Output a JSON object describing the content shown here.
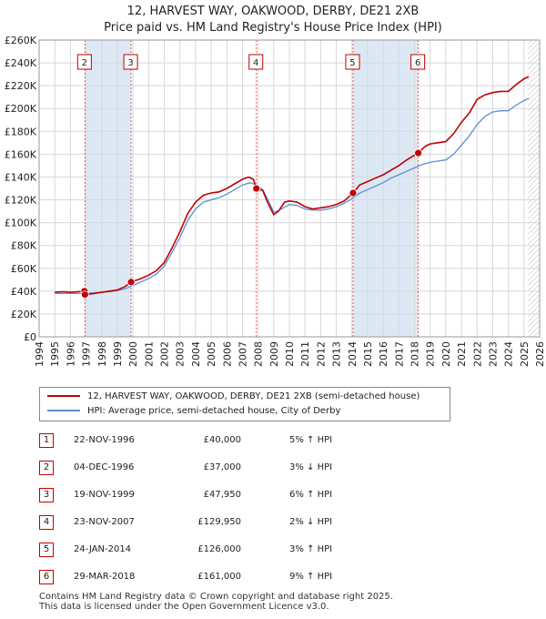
{
  "title_line1": "12, HARVEST WAY, OAKWOOD, DERBY, DE21 2XB",
  "title_line2": "Price paid vs. HM Land Registry's House Price Index (HPI)",
  "legend": {
    "series1": "12, HARVEST WAY, OAKWOOD, DERBY, DE21 2XB (semi-detached house)",
    "series2": "HPI: Average price, semi-detached house, City of Derby"
  },
  "colors": {
    "red": "#c00000",
    "blue": "#5b8fd0",
    "band": "#dde8f5",
    "grid": "#d8d8d8"
  },
  "chart_data": {
    "type": "line",
    "xlim": [
      1994,
      2026
    ],
    "ylim": [
      0,
      260000
    ],
    "y_ticks": [
      {
        "v": 0,
        "label": "£0"
      },
      {
        "v": 20000,
        "label": "£20K"
      },
      {
        "v": 40000,
        "label": "£40K"
      },
      {
        "v": 60000,
        "label": "£60K"
      },
      {
        "v": 80000,
        "label": "£80K"
      },
      {
        "v": 100000,
        "label": "£100K"
      },
      {
        "v": 120000,
        "label": "£120K"
      },
      {
        "v": 140000,
        "label": "£140K"
      },
      {
        "v": 160000,
        "label": "£160K"
      },
      {
        "v": 180000,
        "label": "£180K"
      },
      {
        "v": 200000,
        "label": "£200K"
      },
      {
        "v": 220000,
        "label": "£220K"
      },
      {
        "v": 240000,
        "label": "£240K"
      },
      {
        "v": 260000,
        "label": "£260K"
      }
    ],
    "x_ticks": [
      "1994",
      "1995",
      "1996",
      "1997",
      "1998",
      "1999",
      "2000",
      "2001",
      "2002",
      "2003",
      "2004",
      "2005",
      "2006",
      "2007",
      "2008",
      "2009",
      "2010",
      "2011",
      "2012",
      "2013",
      "2014",
      "2015",
      "2016",
      "2017",
      "2018",
      "2019",
      "2020",
      "2021",
      "2022",
      "2023",
      "2024",
      "2025",
      "2026"
    ],
    "series": [
      {
        "name": "12, HARVEST WAY, OAKWOOD, DERBY, DE21 2XB (semi-detached house)",
        "color": "#c00000",
        "points": [
          [
            1995,
            39000
          ],
          [
            1995.5,
            39500
          ],
          [
            1996,
            39000
          ],
          [
            1996.5,
            39500
          ],
          [
            1996.9,
            40000
          ],
          [
            1996.93,
            37000
          ],
          [
            1997.5,
            38000
          ],
          [
            1998,
            39000
          ],
          [
            1998.5,
            40000
          ],
          [
            1999,
            41000
          ],
          [
            1999.5,
            44000
          ],
          [
            1999.88,
            47950
          ],
          [
            2000.5,
            51000
          ],
          [
            2001,
            54000
          ],
          [
            2001.5,
            58000
          ],
          [
            2002,
            65000
          ],
          [
            2002.5,
            78000
          ],
          [
            2003,
            92000
          ],
          [
            2003.5,
            108000
          ],
          [
            2004,
            118000
          ],
          [
            2004.5,
            124000
          ],
          [
            2005,
            126000
          ],
          [
            2005.5,
            127000
          ],
          [
            2006,
            130000
          ],
          [
            2006.5,
            134000
          ],
          [
            2007,
            138000
          ],
          [
            2007.4,
            140000
          ],
          [
            2007.7,
            138000
          ],
          [
            2007.89,
            129950
          ],
          [
            2008.3,
            128000
          ],
          [
            2008.6,
            118000
          ],
          [
            2009,
            107000
          ],
          [
            2009.3,
            110000
          ],
          [
            2009.7,
            118000
          ],
          [
            2010,
            119000
          ],
          [
            2010.5,
            118000
          ],
          [
            2011,
            114000
          ],
          [
            2011.5,
            112000
          ],
          [
            2012,
            113000
          ],
          [
            2012.5,
            114000
          ],
          [
            2013,
            116000
          ],
          [
            2013.5,
            119000
          ],
          [
            2014.07,
            126000
          ],
          [
            2014.5,
            133000
          ],
          [
            2015,
            136000
          ],
          [
            2015.5,
            139000
          ],
          [
            2016,
            142000
          ],
          [
            2016.5,
            146000
          ],
          [
            2017,
            150000
          ],
          [
            2017.5,
            155000
          ],
          [
            2018.24,
            161000
          ],
          [
            2018.7,
            167000
          ],
          [
            2019,
            169000
          ],
          [
            2019.5,
            170000
          ],
          [
            2020,
            171000
          ],
          [
            2020.5,
            178000
          ],
          [
            2021,
            188000
          ],
          [
            2021.5,
            196000
          ],
          [
            2022,
            208000
          ],
          [
            2022.5,
            212000
          ],
          [
            2023,
            214000
          ],
          [
            2023.5,
            215000
          ],
          [
            2024,
            215000
          ],
          [
            2024.5,
            221000
          ],
          [
            2025,
            226000
          ],
          [
            2025.3,
            228000
          ]
        ]
      },
      {
        "name": "HPI: Average price, semi-detached house, City of Derby",
        "color": "#5b8fd0",
        "points": [
          [
            1995,
            38000
          ],
          [
            1995.5,
            38000
          ],
          [
            1996,
            38000
          ],
          [
            1996.5,
            38000
          ],
          [
            1997,
            38000
          ],
          [
            1997.5,
            38500
          ],
          [
            1998,
            39000
          ],
          [
            1998.5,
            39500
          ],
          [
            1999,
            40500
          ],
          [
            1999.5,
            42000
          ],
          [
            2000,
            45000
          ],
          [
            2000.5,
            48000
          ],
          [
            2001,
            51000
          ],
          [
            2001.5,
            55000
          ],
          [
            2002,
            62000
          ],
          [
            2002.5,
            74000
          ],
          [
            2003,
            87000
          ],
          [
            2003.5,
            102000
          ],
          [
            2004,
            112000
          ],
          [
            2004.5,
            118000
          ],
          [
            2005,
            120000
          ],
          [
            2005.5,
            122000
          ],
          [
            2006,
            125000
          ],
          [
            2006.5,
            129000
          ],
          [
            2007,
            133000
          ],
          [
            2007.5,
            135000
          ],
          [
            2007.9,
            133000
          ],
          [
            2008.3,
            129000
          ],
          [
            2008.7,
            118000
          ],
          [
            2009,
            109000
          ],
          [
            2009.5,
            112000
          ],
          [
            2010,
            116000
          ],
          [
            2010.5,
            115000
          ],
          [
            2011,
            112000
          ],
          [
            2011.5,
            111000
          ],
          [
            2012,
            111000
          ],
          [
            2012.5,
            112000
          ],
          [
            2013,
            114000
          ],
          [
            2013.5,
            117000
          ],
          [
            2014,
            121000
          ],
          [
            2014.5,
            126000
          ],
          [
            2015,
            129000
          ],
          [
            2015.5,
            132000
          ],
          [
            2016,
            135000
          ],
          [
            2016.5,
            139000
          ],
          [
            2017,
            142000
          ],
          [
            2017.5,
            145000
          ],
          [
            2018,
            148000
          ],
          [
            2018.5,
            151000
          ],
          [
            2019,
            153000
          ],
          [
            2019.5,
            154000
          ],
          [
            2020,
            155000
          ],
          [
            2020.5,
            160000
          ],
          [
            2021,
            168000
          ],
          [
            2021.5,
            176000
          ],
          [
            2022,
            186000
          ],
          [
            2022.5,
            193000
          ],
          [
            2023,
            197000
          ],
          [
            2023.5,
            198000
          ],
          [
            2024,
            198000
          ],
          [
            2024.5,
            203000
          ],
          [
            2025,
            207000
          ],
          [
            2025.3,
            209000
          ]
        ]
      }
    ],
    "markers": [
      {
        "num": "2",
        "x": 1996.93,
        "y": 37000
      },
      {
        "num": "3",
        "x": 1999.88,
        "y": 47950
      },
      {
        "num": "4",
        "x": 2007.89,
        "y": 129950
      },
      {
        "num": "5",
        "x": 2014.07,
        "y": 126000
      },
      {
        "num": "6",
        "x": 2018.24,
        "y": 161000
      }
    ],
    "sale_dots": [
      {
        "x": 1996.9,
        "y": 40000
      },
      {
        "x": 1996.93,
        "y": 37000
      },
      {
        "x": 1999.88,
        "y": 47950
      },
      {
        "x": 2007.89,
        "y": 129950
      },
      {
        "x": 2014.07,
        "y": 126000
      },
      {
        "x": 2018.24,
        "y": 161000
      }
    ],
    "bands": [
      [
        1996.93,
        1999.88
      ],
      [
        2014.07,
        2018.24
      ]
    ]
  },
  "sales": [
    {
      "num": "1",
      "date": "22-NOV-1996",
      "price": "£40,000",
      "hpi": "5% ↑ HPI"
    },
    {
      "num": "2",
      "date": "04-DEC-1996",
      "price": "£37,000",
      "hpi": "3% ↓ HPI"
    },
    {
      "num": "3",
      "date": "19-NOV-1999",
      "price": "£47,950",
      "hpi": "6% ↑ HPI"
    },
    {
      "num": "4",
      "date": "23-NOV-2007",
      "price": "£129,950",
      "hpi": "2% ↓ HPI"
    },
    {
      "num": "5",
      "date": "24-JAN-2014",
      "price": "£126,000",
      "hpi": "3% ↑ HPI"
    },
    {
      "num": "6",
      "date": "29-MAR-2018",
      "price": "£161,000",
      "hpi": "9% ↑ HPI"
    }
  ],
  "footer": {
    "line1": "Contains HM Land Registry data © Crown copyright and database right 2025.",
    "line2": "This data is licensed under the Open Government Licence v3.0."
  }
}
